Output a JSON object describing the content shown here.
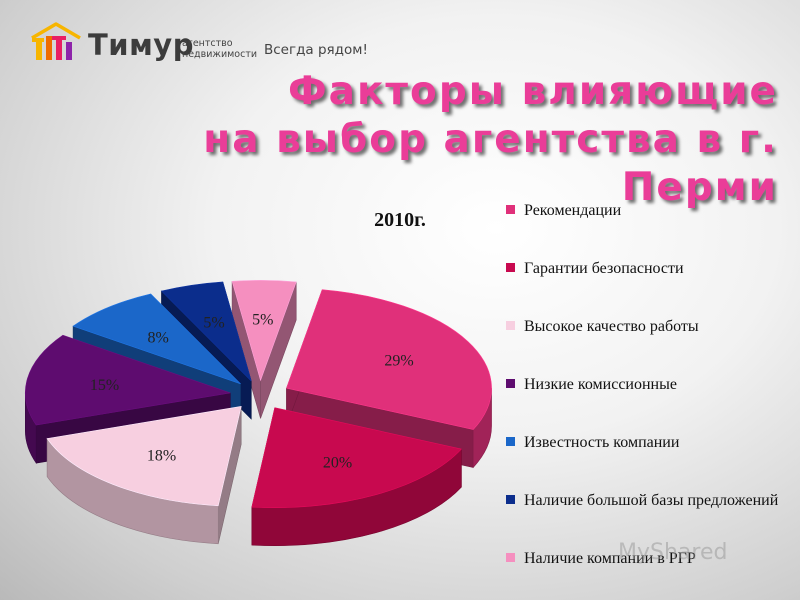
{
  "logo": {
    "name": "Тимур",
    "sub_line1": "агентство",
    "sub_line2": "недвижимости",
    "slogan": "Всегда рядом!",
    "colors": [
      "#f7b500",
      "#ef6c00",
      "#e91e63",
      "#8e24aa"
    ]
  },
  "title": {
    "line1": "Факторы влияющие",
    "line2": "на выбор агентства в г. Перми"
  },
  "watermark": "MyShared",
  "chart_data": {
    "type": "pie",
    "style": "3d-exploded",
    "title": "2010г.",
    "legend_position": "right",
    "series": [
      {
        "name": "Рекомендации",
        "value": 29,
        "label": "29%",
        "color": "#e0307a"
      },
      {
        "name": "Гарантии безопасности",
        "value": 20,
        "label": "20%",
        "color": "#c8094f"
      },
      {
        "name": "Высокое качество работы",
        "value": 18,
        "label": "18%",
        "color": "#f7cfe0"
      },
      {
        "name": "Низкие комиссионные",
        "value": 15,
        "label": "15%",
        "color": "#5e0c6f"
      },
      {
        "name": "Известность компании",
        "value": 8,
        "label": "8%",
        "color": "#1b67c9"
      },
      {
        "name": "Наличие большой базы предложений",
        "value": 5,
        "label": "5%",
        "color": "#0b2d8c"
      },
      {
        "name": "Наличие компании в РГР",
        "value": 5,
        "label": "5%",
        "color": "#f58fbf"
      }
    ]
  }
}
